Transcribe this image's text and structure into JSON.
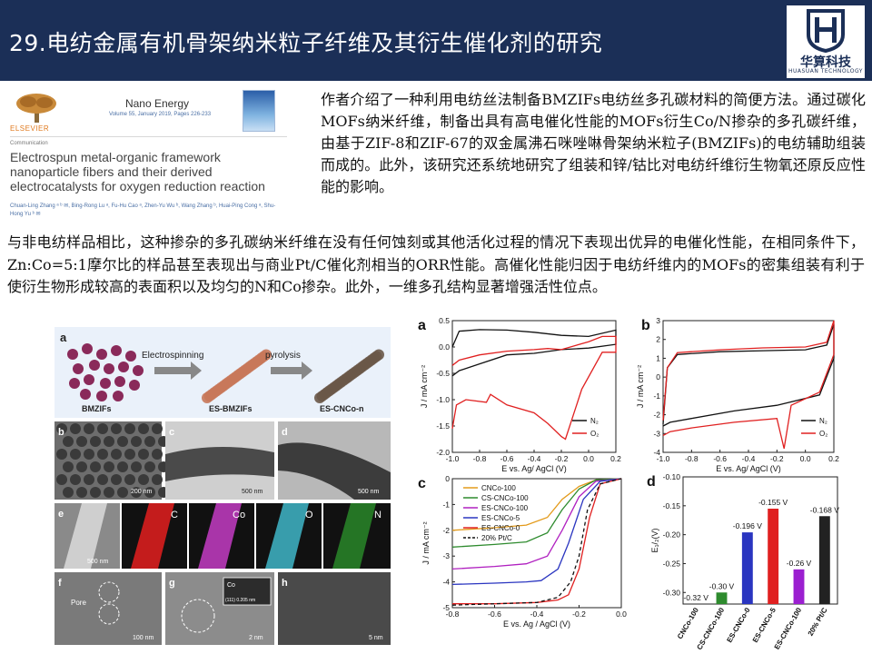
{
  "header": {
    "title": "29.电纺金属有机骨架纳米粒子纤维及其衍生催化剂的研究",
    "logo_name": "华算科技",
    "logo_sub": "HUASUAN TECHNOLOGY",
    "logo_icon": "hs-monogram-icon"
  },
  "paper": {
    "publisher": "ELSEVIER",
    "journal": "Nano Energy",
    "volume": "Volume 55, January 2019, Pages 226-233",
    "type": "Communication",
    "title": "Electrospun metal-organic framework nanoparticle fibers and their derived electrocatalysts for oxygen reduction reaction",
    "authors": "Chuan-Ling Zhang ᵃ ᵇ ✉, Bing-Rong Lu ᵃ, Fu-Hu Cao ᵃ, Zhen-Yu Wu ᵇ, Wang Zhang ᵇ, Huai-Ping Cong ᵃ, Shu-Hong Yu ᵇ ✉"
  },
  "intro_text": "作者介绍了一种利用电纺丝法制备BMZIFs电纺丝多孔碳材料的简便方法。通过碳化MOFs纳米纤维，制备出具有高电催化性能的MOFs衍生Co/N掺杂的多孔碳纤维，由基于ZIF-8和ZIF-67的双金属沸石咪唑啉骨架纳米粒子(BMZIFs)的电纺辅助组装而成的。此外，该研究还系统地研究了组装和锌/钴比对电纺纤维衍生物氧还原反应性能的影响。",
  "body_text": "与非电纺样品相比，这种掺杂的多孔碳纳米纤维在没有任何蚀刻或其他活化过程的情况下表现出优异的电催化性能，在相同条件下，Zn:Co=5:1摩尔比的样品甚至表现出与商业Pt/C催化剂相当的ORR性能。高催化性能归因于电纺纤维内的MOFs的密集组装有利于使衍生物形成较高的表面积以及均匀的N和Co掺杂。此外，一维多孔结构显著增强活性位点。",
  "figure_left": {
    "schematic": {
      "panel": "a",
      "step1": "Electrospinning",
      "step2": "pyrolysis",
      "labels": [
        "BMZIFs",
        "ES-BMZIFs",
        "ES-CNCo-n"
      ]
    },
    "tem": [
      {
        "panel": "b",
        "scale": "200 nm"
      },
      {
        "panel": "c",
        "scale": "500 nm"
      },
      {
        "panel": "d",
        "scale": "500 nm"
      }
    ],
    "mapping": {
      "panel": "e",
      "scale": "500 nm",
      "elements": [
        {
          "label": "C",
          "color": "#d81e1e"
        },
        {
          "label": "Co",
          "color": "#c43cc4"
        },
        {
          "label": "O",
          "color": "#3fb6c8"
        },
        {
          "label": "N",
          "color": "#2ea02e"
        }
      ]
    },
    "hrtem": [
      {
        "panel": "f",
        "scale": "100 nm",
        "label": "Pore"
      },
      {
        "panel": "g",
        "scale": "2 nm",
        "label": "Co",
        "inset": "(111) 0.205 nm"
      },
      {
        "panel": "h",
        "scale": "5 nm"
      }
    ]
  },
  "chart_data": [
    {
      "type": "line",
      "panel": "a",
      "xlabel": "E vs. Ag/ AgCl (V)",
      "ylabel": "J / mA cm⁻²",
      "xlim": [
        -1.0,
        0.2
      ],
      "ylim": [
        -2.0,
        0.5
      ],
      "xticks": [
        "-1.0",
        "-0.8",
        "-0.6",
        "-0.4",
        "-0.2",
        "0.0",
        "0.2"
      ],
      "yticks": [
        "0.5",
        "0.0",
        "-0.5",
        "-1.0",
        "-1.5",
        "-2.0"
      ],
      "legend": "bottom-right",
      "series": [
        {
          "name": "N₂",
          "color": "#111111",
          "x": [
            -1.0,
            -0.95,
            -0.8,
            -0.6,
            -0.4,
            -0.2,
            0.0,
            0.2,
            0.2,
            0.0,
            -0.2,
            -0.4,
            -0.6,
            -0.8,
            -0.95,
            -1.0
          ],
          "y": [
            0.0,
            0.3,
            0.33,
            0.32,
            0.28,
            0.22,
            0.2,
            0.32,
            0.05,
            -0.02,
            -0.05,
            -0.12,
            -0.15,
            -0.32,
            -0.45,
            -0.55
          ]
        },
        {
          "name": "O₂",
          "color": "#e02020",
          "x": [
            -1.0,
            -0.97,
            -0.9,
            -0.75,
            -0.72,
            -0.6,
            -0.4,
            -0.3,
            -0.2,
            -0.17,
            -0.05,
            0.1,
            0.2,
            0.2,
            0.1,
            0.0,
            -0.2,
            -0.3,
            -0.4,
            -0.6,
            -0.8,
            -0.95,
            -1.0
          ],
          "y": [
            -1.55,
            -1.1,
            -1.0,
            -1.05,
            -0.9,
            -1.1,
            -1.25,
            -1.45,
            -1.7,
            -1.75,
            -0.8,
            -0.1,
            -0.1,
            0.2,
            0.2,
            0.1,
            -0.05,
            -0.03,
            -0.05,
            -0.08,
            -0.15,
            -0.25,
            -0.35
          ]
        }
      ]
    },
    {
      "type": "line",
      "panel": "b",
      "xlabel": "E vs. Ag/ AgCl (V)",
      "ylabel": "J / mA cm⁻²",
      "xlim": [
        -1.0,
        0.2
      ],
      "ylim": [
        -4,
        3
      ],
      "xticks": [
        "-1.0",
        "-0.8",
        "-0.6",
        "-0.4",
        "-0.2",
        "0.0",
        "0.2"
      ],
      "yticks": [
        "3",
        "2",
        "1",
        "0",
        "-1",
        "-2",
        "-3",
        "-4"
      ],
      "legend": "bottom-right",
      "series": [
        {
          "name": "N₂",
          "color": "#111111",
          "x": [
            -1.0,
            -0.97,
            -0.9,
            -0.6,
            -0.3,
            0.0,
            0.15,
            0.2,
            0.2,
            0.1,
            -0.2,
            -0.5,
            -0.8,
            -0.95,
            -1.0
          ],
          "y": [
            -2.5,
            0.5,
            1.2,
            1.35,
            1.4,
            1.45,
            1.7,
            2.8,
            1.0,
            -0.95,
            -1.5,
            -1.8,
            -2.2,
            -2.4,
            -2.6
          ]
        },
        {
          "name": "O₂",
          "color": "#e02020",
          "x": [
            -1.0,
            -0.97,
            -0.9,
            -0.6,
            -0.3,
            0.0,
            0.15,
            0.2,
            0.2,
            0.1,
            -0.1,
            -0.15,
            -0.2,
            -0.5,
            -0.8,
            -0.95,
            -1.0
          ],
          "y": [
            -2.3,
            0.5,
            1.3,
            1.45,
            1.55,
            1.6,
            1.85,
            3.0,
            1.2,
            -0.8,
            -1.5,
            -3.8,
            -2.2,
            -2.4,
            -2.7,
            -2.9,
            -3.1
          ]
        }
      ]
    },
    {
      "type": "line",
      "panel": "c",
      "xlabel": "E vs. Ag / AgCl (V)",
      "ylabel": "J / mA cm⁻²",
      "xlim": [
        -0.8,
        0.0
      ],
      "ylim": [
        -5,
        0
      ],
      "xticks": [
        "-0.8",
        "-0.6",
        "-0.4",
        "-0.2",
        "0.0"
      ],
      "yticks": [
        "0",
        "-1",
        "-2",
        "-3",
        "-4",
        "-5"
      ],
      "legend": "top-left",
      "series": [
        {
          "name": "CNCo-100",
          "color": "#e39a1a",
          "x": [
            -0.8,
            -0.6,
            -0.45,
            -0.35,
            -0.28,
            -0.2,
            -0.12,
            0.0
          ],
          "y": [
            -2.0,
            -1.9,
            -1.8,
            -1.5,
            -0.8,
            -0.3,
            -0.05,
            0.0
          ]
        },
        {
          "name": "CS-CNCo-100",
          "color": "#2e8b2e",
          "x": [
            -0.8,
            -0.6,
            -0.45,
            -0.35,
            -0.28,
            -0.2,
            -0.12,
            0.0
          ],
          "y": [
            -2.65,
            -2.55,
            -2.45,
            -2.1,
            -1.2,
            -0.4,
            -0.05,
            0.0
          ]
        },
        {
          "name": "ES-CNCo-100",
          "color": "#b020c0",
          "x": [
            -0.8,
            -0.6,
            -0.45,
            -0.35,
            -0.28,
            -0.2,
            -0.12,
            0.0
          ],
          "y": [
            -3.5,
            -3.4,
            -3.3,
            -3.0,
            -2.0,
            -0.7,
            -0.1,
            0.0
          ]
        },
        {
          "name": "ES-CNCo-5",
          "color": "#2a35c0",
          "x": [
            -0.8,
            -0.6,
            -0.45,
            -0.38,
            -0.3,
            -0.25,
            -0.18,
            -0.1,
            0.0
          ],
          "y": [
            -4.1,
            -4.05,
            -4.0,
            -3.95,
            -3.5,
            -2.5,
            -0.8,
            -0.1,
            0.0
          ]
        },
        {
          "name": "ES-CNCo-0",
          "color": "#e02020",
          "x": [
            -0.8,
            -0.6,
            -0.4,
            -0.3,
            -0.25,
            -0.2,
            -0.15,
            -0.1,
            0.0
          ],
          "y": [
            -4.85,
            -4.85,
            -4.8,
            -4.7,
            -4.5,
            -3.5,
            -1.5,
            -0.2,
            0.0
          ]
        },
        {
          "name": "20% Pt/C",
          "color": "#111111",
          "dashed": true,
          "x": [
            -0.8,
            -0.6,
            -0.4,
            -0.3,
            -0.24,
            -0.2,
            -0.16,
            -0.1,
            0.0
          ],
          "y": [
            -4.9,
            -4.85,
            -4.8,
            -4.6,
            -4.0,
            -3.0,
            -1.2,
            -0.2,
            0.0
          ]
        }
      ]
    },
    {
      "type": "bar",
      "panel": "d",
      "ylabel": "E₁/₂(V)",
      "ylim": [
        -0.32,
        -0.1
      ],
      "yticks": [
        "-0.10",
        "-0.15",
        "-0.20",
        "-0.25",
        "-0.30"
      ],
      "categories": [
        "CNCo-100",
        "CS-CNCo-100",
        "ES-CNCo-0",
        "ES-CNCo-5",
        "ES-CNCo-100",
        "20% Pt/C"
      ],
      "values": [
        -0.32,
        -0.3,
        -0.196,
        -0.155,
        -0.26,
        -0.168
      ],
      "value_labels": [
        "-0.32 V",
        "-0.30 V",
        "-0.196 V",
        "-0.155 V",
        "-0.26 V",
        "-0.168 V"
      ],
      "colors": [
        "#e39a1a",
        "#2e8b2e",
        "#2a35c0",
        "#e02020",
        "#9b1fd0",
        "#222222"
      ]
    }
  ]
}
